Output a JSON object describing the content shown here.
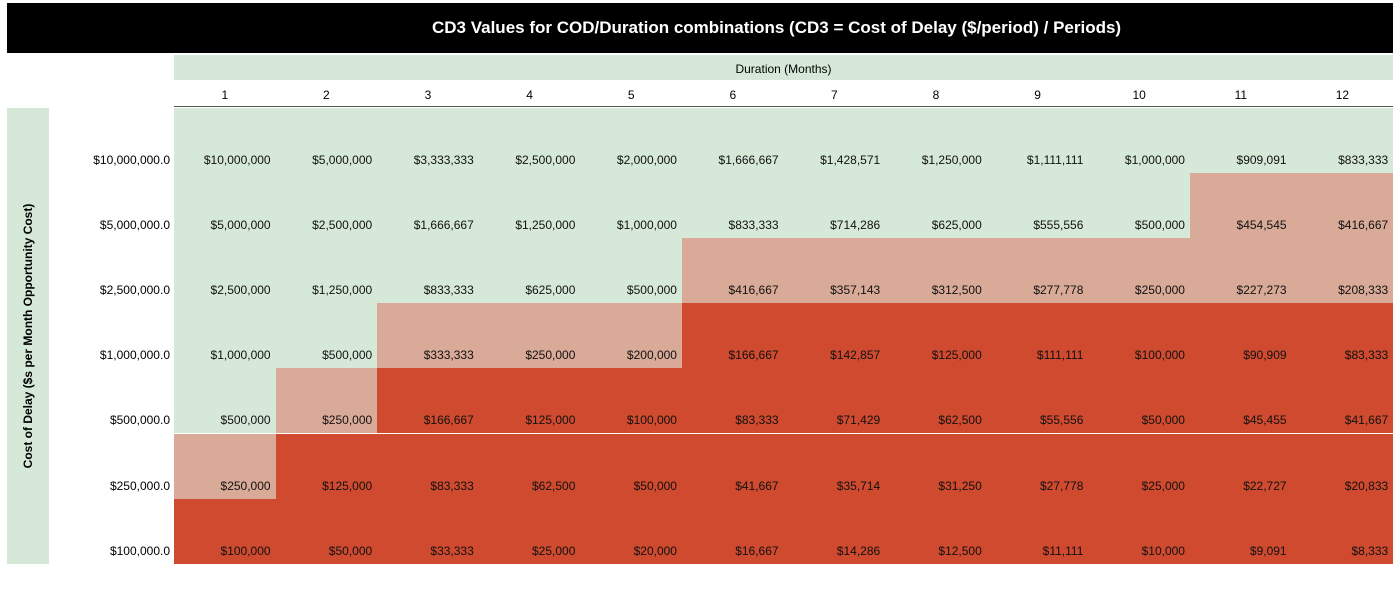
{
  "title": "CD3 Values for COD/Duration combinations (CD3 = Cost of Delay ($/period) / Periods)",
  "x_axis_title": "Duration (Months)",
  "y_axis_title": "Cost of Delay ($s per Month Opportunity Cost)",
  "durations": [
    "1",
    "2",
    "3",
    "4",
    "5",
    "6",
    "7",
    "8",
    "9",
    "10",
    "11",
    "12"
  ],
  "colors": {
    "low": "#d6e9d8",
    "mid": "#d9aa97",
    "high": "#cf4a2e"
  },
  "rows": [
    {
      "label": "$10,000,000.0",
      "cells": [
        "$10,000,000",
        "$5,000,000",
        "$3,333,333",
        "$2,500,000",
        "$2,000,000",
        "$1,666,667",
        "$1,428,571",
        "$1,250,000",
        "$1,111,111",
        "$1,000,000",
        "$909,091",
        "$833,333"
      ]
    },
    {
      "label": "$5,000,000.0",
      "cells": [
        "$5,000,000",
        "$2,500,000",
        "$1,666,667",
        "$1,250,000",
        "$1,000,000",
        "$833,333",
        "$714,286",
        "$625,000",
        "$555,556",
        "$500,000",
        "$454,545",
        "$416,667"
      ]
    },
    {
      "label": "$2,500,000.0",
      "cells": [
        "$2,500,000",
        "$1,250,000",
        "$833,333",
        "$625,000",
        "$500,000",
        "$416,667",
        "$357,143",
        "$312,500",
        "$277,778",
        "$250,000",
        "$227,273",
        "$208,333"
      ]
    },
    {
      "label": "$1,000,000.0",
      "cells": [
        "$1,000,000",
        "$500,000",
        "$333,333",
        "$250,000",
        "$200,000",
        "$166,667",
        "$142,857",
        "$125,000",
        "$111,111",
        "$100,000",
        "$90,909",
        "$83,333"
      ]
    },
    {
      "label": "$500,000.0",
      "cells": [
        "$500,000",
        "$250,000",
        "$166,667",
        "$125,000",
        "$100,000",
        "$83,333",
        "$71,429",
        "$62,500",
        "$55,556",
        "$50,000",
        "$45,455",
        "$41,667"
      ]
    },
    {
      "label": "$250,000.0",
      "cells": [
        "$250,000",
        "$125,000",
        "$83,333",
        "$62,500",
        "$50,000",
        "$41,667",
        "$35,714",
        "$31,250",
        "$27,778",
        "$25,000",
        "$22,727",
        "$20,833"
      ]
    },
    {
      "label": "$100,000.0",
      "cells": [
        "$100,000",
        "$50,000",
        "$33,333",
        "$25,000",
        "$20,000",
        "$16,667",
        "$14,286",
        "$12,500",
        "$11,111",
        "$10,000",
        "$9,091",
        "$8,333"
      ]
    }
  ]
}
